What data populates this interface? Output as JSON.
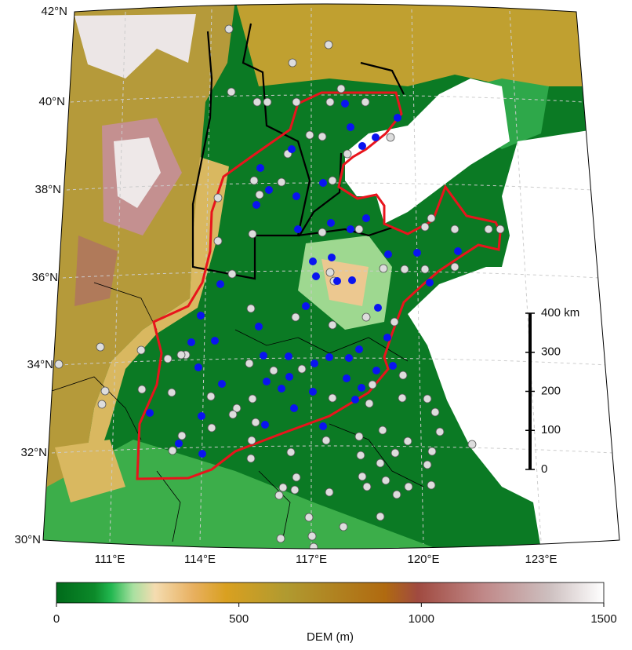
{
  "latitude_labels": [
    "42°N",
    "40°N",
    "38°N",
    "36°N",
    "34°N",
    "32°N",
    "30°N"
  ],
  "longitude_labels": [
    "111°E",
    "114°E",
    "117°E",
    "120°E",
    "123°E"
  ],
  "scale_bar": {
    "ticks": [
      0,
      100,
      200,
      300,
      {
        "value": 400,
        "label": "400 km"
      }
    ]
  },
  "colorbar": {
    "ticks": [
      0,
      500,
      1000,
      1500
    ],
    "label": "DEM (m)"
  }
}
